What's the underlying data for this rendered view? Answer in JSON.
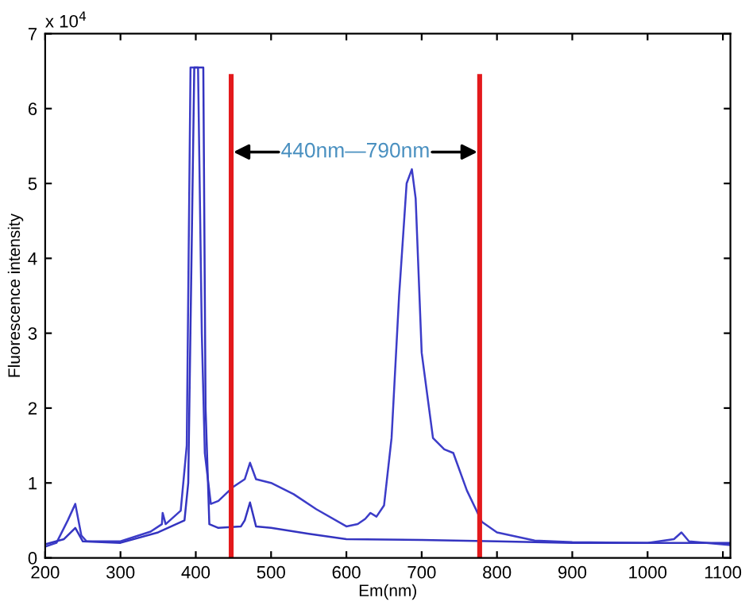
{
  "chart_data": {
    "type": "line",
    "xlabel": "Em(nm)",
    "ylabel": "Fluorescence intensity",
    "annotations": [
      "x 10$^{4}$",
      {
        "text": "440nm—790nm",
        "x": 447,
        "y": 5.42
      }
    ],
    "xlim": [
      200,
      1110
    ],
    "xticks": [
      200,
      300,
      400,
      500,
      600,
      700,
      800,
      900,
      1000,
      1100
    ],
    "ylim": [
      0,
      7
    ],
    "yticks": [
      0,
      1,
      2,
      3,
      4,
      5,
      6,
      7
    ],
    "grid": false,
    "legend": false,
    "marker": "none",
    "line_style": "solid",
    "series": [
      {
        "color": "#3c3cc8",
        "x": [
          200,
          215,
          230,
          240,
          248,
          255,
          300,
          340,
          355,
          356,
          360,
          380,
          388,
          393,
          403,
          408,
          412,
          420,
          430,
          450,
          465,
          472,
          480,
          500,
          530,
          560,
          600,
          615,
          625,
          632,
          640,
          650,
          660,
          670,
          680,
          687,
          692,
          700,
          715,
          730,
          742,
          760,
          780,
          800,
          850,
          900,
          1000,
          1035,
          1045,
          1055,
          1110
        ],
        "values": [
          0.15,
          0.2,
          0.5,
          0.72,
          0.3,
          0.22,
          0.22,
          0.35,
          0.45,
          0.6,
          0.45,
          0.63,
          1.5,
          6.55,
          6.55,
          3.0,
          1.4,
          0.72,
          0.76,
          0.95,
          1.05,
          1.27,
          1.05,
          1.0,
          0.85,
          0.65,
          0.42,
          0.45,
          0.52,
          0.6,
          0.55,
          0.7,
          1.6,
          3.5,
          5.0,
          5.19,
          4.8,
          2.74,
          1.6,
          1.45,
          1.4,
          0.9,
          0.48,
          0.34,
          0.23,
          0.21,
          0.2,
          0.25,
          0.34,
          0.22,
          0.17
        ]
      },
      {
        "color": "#3434c0",
        "x": [
          200,
          225,
          240,
          250,
          300,
          350,
          385,
          390,
          398,
          410,
          413,
          418,
          430,
          460,
          465,
          472,
          480,
          500,
          550,
          600,
          700,
          800,
          900,
          1000,
          1110
        ],
        "values": [
          0.18,
          0.25,
          0.4,
          0.22,
          0.2,
          0.34,
          0.5,
          1.0,
          6.55,
          6.55,
          2.0,
          0.45,
          0.4,
          0.42,
          0.5,
          0.74,
          0.42,
          0.4,
          0.32,
          0.25,
          0.24,
          0.22,
          0.2,
          0.2,
          0.2
        ]
      },
      {
        "color": "#e3191c",
        "x": [
          447,
          447
        ],
        "values": [
          0,
          6.43
        ]
      },
      {
        "color": "#e3191c",
        "x": [
          777,
          777
        ],
        "values": [
          0,
          6.43
        ]
      }
    ]
  }
}
